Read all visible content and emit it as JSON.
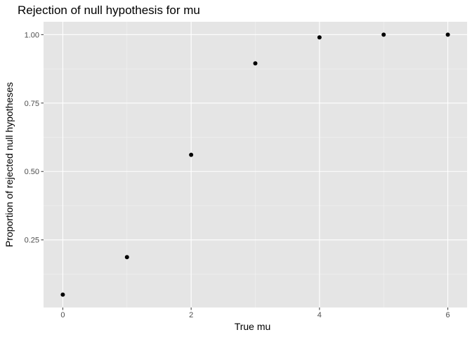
{
  "chart_data": {
    "type": "scatter",
    "title": "Rejection of null hypothesis for mu",
    "xlabel": "True mu",
    "ylabel": "Proportion of rejected null hypotheses",
    "x": [
      0,
      1,
      2,
      3,
      4,
      5,
      6
    ],
    "y": [
      0.05,
      0.187,
      0.561,
      0.895,
      0.99,
      1.0,
      1.0
    ],
    "xlim": [
      -0.3,
      6.3
    ],
    "ylim": [
      0.003,
      1.047
    ],
    "x_ticks": [
      0,
      2,
      4,
      6
    ],
    "x_tick_labels": [
      "0",
      "2",
      "4",
      "6"
    ],
    "y_ticks": [
      0.25,
      0.5,
      0.75,
      1.0
    ],
    "y_tick_labels": [
      "0.25",
      "0.50",
      "0.75",
      "1.00"
    ],
    "x_minor_ticks": [
      1,
      3,
      5
    ],
    "y_minor_ticks": [
      0.125,
      0.375,
      0.625,
      0.875
    ],
    "grid": true,
    "legend": "none",
    "colors": {
      "panel_background": "#e5e5e5",
      "grid_major": "#ffffff",
      "grid_minor": "#f2f2f2",
      "point": "#000000",
      "tick": "#333333",
      "tick_label": "#4d4d4d"
    }
  }
}
